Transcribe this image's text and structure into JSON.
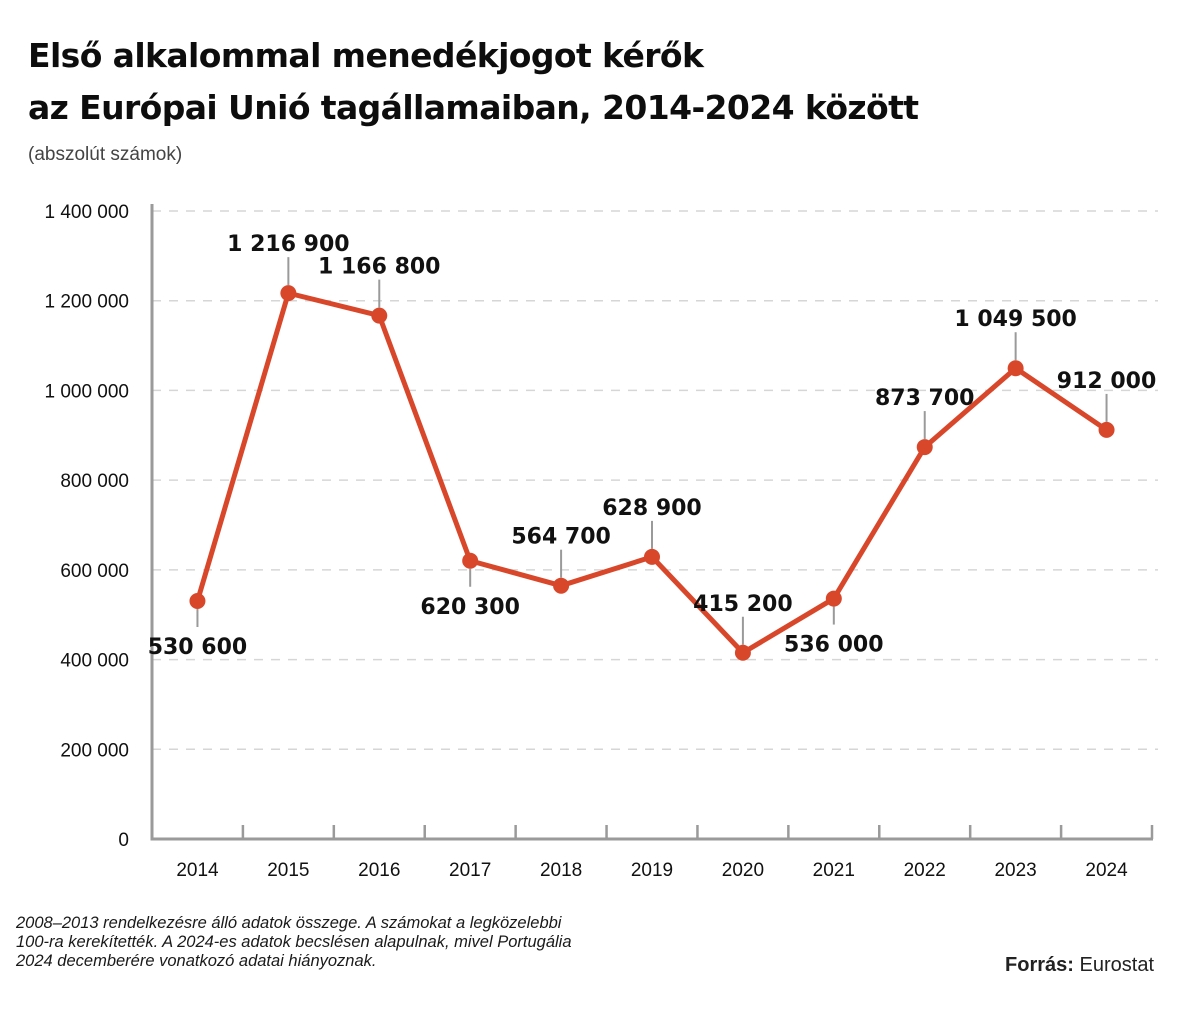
{
  "header": {
    "title_line1": "Első alkalommal menedékjogot kérők",
    "title_line2": "az Európai Unió tagállamaiban, 2014-2024 között",
    "subtitle": "(abszolút számok)"
  },
  "footer": {
    "note_line1": "2008–2013 rendelkezésre álló adatok összege. A számokat a legközelebbi",
    "note_line2": "100-ra kerekítették. A 2024-es adatok becslésen alapulnak, mivel Portugália",
    "note_line3": "2024 decemberére vonatkozó adatai hiányoznak.",
    "source_label": "Forrás:",
    "source_value": "Eurostat"
  },
  "colors": {
    "line": "#d9472b",
    "axis": "#9a9a9a",
    "grid": "#d6d6d6",
    "text": "#111111"
  },
  "chart_data": {
    "type": "line",
    "title": "Első alkalommal menedékjogot kérők az Európai Unió tagállamaiban, 2014-2024 között",
    "subtitle": "(abszolút számok)",
    "xlabel": "",
    "ylabel": "",
    "ylim": [
      0,
      1400000
    ],
    "grid": true,
    "categories": [
      "2014",
      "2015",
      "2016",
      "2017",
      "2018",
      "2019",
      "2020",
      "2021",
      "2022",
      "2023",
      "2024"
    ],
    "values": [
      530600,
      1216900,
      1166800,
      620300,
      564700,
      628900,
      415200,
      536000,
      873700,
      1049500,
      912000
    ],
    "value_labels": [
      "530 600",
      "1 216 900",
      "1 166 800",
      "620 300",
      "564 700",
      "628 900",
      "415 200",
      "536 000",
      "873 700",
      "1 049 500",
      "912 000"
    ],
    "label_positions": [
      "below",
      "above",
      "above",
      "below",
      "above",
      "above",
      "above",
      "below",
      "above",
      "above",
      "above"
    ],
    "yticks": [
      0,
      200000,
      400000,
      600000,
      800000,
      1000000,
      1200000,
      1400000
    ],
    "ytick_labels": [
      "0",
      "200 000",
      "400 000",
      "600 000",
      "800 000",
      "1 000 000",
      "1 200 000",
      "1 400 000"
    ]
  }
}
